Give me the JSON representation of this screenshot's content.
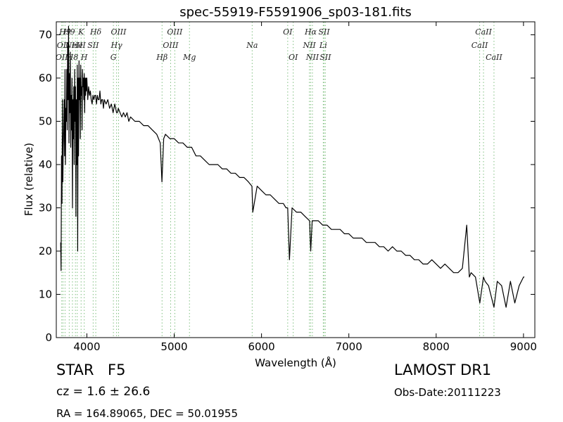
{
  "chart_data": {
    "type": "line",
    "title": "spec-55919-F5591906_sp03-181.fits",
    "xlabel": "Wavelength (Å)",
    "ylabel": "Flux (relative)",
    "xlim": [
      3650,
      9130
    ],
    "ylim": [
      0,
      73
    ],
    "xticks": [
      4000,
      5000,
      6000,
      7000,
      8000,
      9000
    ],
    "yticks": [
      0,
      10,
      20,
      30,
      40,
      50,
      60,
      70
    ],
    "grid": false,
    "line_color": "#000000",
    "line_marker_color": "#7fbf7f",
    "series": [
      {
        "x": [
          3700,
          3705,
          3710,
          3715,
          3720,
          3725,
          3730,
          3735,
          3740,
          3745,
          3750,
          3755,
          3760,
          3765,
          3770,
          3775,
          3780,
          3785,
          3790,
          3795,
          3800,
          3805,
          3810,
          3815,
          3820,
          3825,
          3830,
          3835,
          3840,
          3845,
          3850,
          3855,
          3860,
          3865,
          3870,
          3875,
          3880,
          3885,
          3890,
          3895,
          3900,
          3905,
          3910,
          3915,
          3920,
          3925,
          3930,
          3935,
          3940,
          3945,
          3950,
          3955,
          3960,
          3965,
          3970,
          3975,
          3980,
          3985,
          3990,
          3995,
          4000,
          4010,
          4020,
          4030,
          4040,
          4050,
          4060,
          4070,
          4080,
          4090,
          4100,
          4110,
          4120,
          4130,
          4140,
          4150,
          4160,
          4170,
          4180,
          4190,
          4200,
          4220,
          4240,
          4260,
          4280,
          4300,
          4310,
          4320,
          4330,
          4340,
          4350,
          4360,
          4380,
          4400,
          4420,
          4440,
          4460,
          4480,
          4500,
          4550,
          4600,
          4650,
          4700,
          4750,
          4800,
          4840,
          4860,
          4880,
          4900,
          4950,
          5000,
          5050,
          5100,
          5150,
          5200,
          5250,
          5300,
          5350,
          5400,
          5450,
          5500,
          5550,
          5600,
          5650,
          5700,
          5750,
          5800,
          5850,
          5890,
          5900,
          5950,
          6000,
          6050,
          6100,
          6150,
          6200,
          6250,
          6280,
          6300,
          6320,
          6350,
          6400,
          6450,
          6500,
          6550,
          6563,
          6580,
          6600,
          6650,
          6700,
          6750,
          6800,
          6850,
          6900,
          6950,
          7000,
          7050,
          7100,
          7150,
          7200,
          7250,
          7300,
          7350,
          7400,
          7450,
          7500,
          7550,
          7600,
          7650,
          7700,
          7750,
          7800,
          7850,
          7900,
          7950,
          8000,
          8050,
          8100,
          8150,
          8200,
          8250,
          8300,
          8350,
          8380,
          8400,
          8450,
          8500,
          8542,
          8560,
          8600,
          8662,
          8700,
          8750,
          8800,
          8850,
          8900,
          8950,
          9000,
          9010
        ],
        "y": [
          22,
          15.5,
          42,
          31,
          55,
          36,
          44,
          48,
          55,
          42,
          62,
          40,
          53,
          50,
          62,
          48,
          68,
          55,
          72,
          45,
          61,
          52,
          66,
          44,
          56,
          48,
          60,
          30,
          55,
          46,
          58,
          40,
          62,
          50,
          58,
          28,
          55,
          40,
          63,
          20,
          60,
          42,
          64,
          55,
          60,
          46,
          63,
          56,
          58,
          48,
          62,
          58,
          60,
          55,
          61,
          52,
          60,
          56,
          60,
          57,
          60,
          55,
          58,
          56,
          57,
          55,
          54,
          56,
          55,
          56,
          56,
          54,
          56,
          55,
          55,
          57,
          54,
          55,
          55,
          53,
          55,
          54,
          55,
          53,
          54,
          52,
          53,
          54,
          53,
          52,
          52,
          53,
          52,
          51,
          52,
          51,
          52,
          50,
          51,
          50,
          50,
          49,
          49,
          48,
          47,
          45,
          36,
          46,
          47,
          46,
          46,
          45,
          45,
          44,
          44,
          42,
          42,
          41,
          40,
          40,
          40,
          39,
          39,
          38,
          38,
          37,
          37,
          36,
          35,
          29,
          35,
          34,
          33,
          33,
          32,
          31,
          31,
          30,
          30,
          18,
          30,
          29,
          29,
          28,
          27,
          20,
          27,
          27,
          27,
          26,
          26,
          25,
          25,
          25,
          24,
          24,
          23,
          23,
          23,
          22,
          22,
          22,
          21,
          21,
          20,
          21,
          20,
          20,
          19,
          19,
          18,
          18,
          17,
          17,
          18,
          17,
          16,
          17,
          16,
          15,
          15,
          16,
          26,
          14,
          15,
          14,
          8,
          14,
          13,
          12,
          7,
          13,
          12,
          7,
          13,
          8,
          12,
          14,
          14
        ]
      }
    ],
    "lines": [
      {
        "x": 3712,
        "label": "OII",
        "row": 3
      },
      {
        "x": 3727,
        "label": "OII",
        "row": 2
      },
      {
        "x": 3750,
        "label": "H9",
        "row": 1
      },
      {
        "x": 3798,
        "label": "H9",
        "row": 1
      },
      {
        "x": 3835,
        "label": "H8",
        "row": 3
      },
      {
        "x": 3869,
        "label": "NeIII",
        "row": 2
      },
      {
        "x": 3890,
        "label": "He",
        "row": 2
      },
      {
        "x": 3934,
        "label": "K",
        "row": 1
      },
      {
        "x": 3970,
        "label": "H",
        "row": 3
      },
      {
        "x": 4072,
        "label": "SII",
        "row": 2
      },
      {
        "x": 4102,
        "label": "Hδ",
        "row": 1
      },
      {
        "x": 4304,
        "label": "G",
        "row": 3
      },
      {
        "x": 4340,
        "label": "Hγ",
        "row": 2
      },
      {
        "x": 4363,
        "label": "OIII",
        "row": 1
      },
      {
        "x": 4861,
        "label": "Hβ",
        "row": 3
      },
      {
        "x": 4959,
        "label": "OIII",
        "row": 2
      },
      {
        "x": 5007,
        "label": "OIII",
        "row": 1
      },
      {
        "x": 5175,
        "label": "Mg",
        "row": 3
      },
      {
        "x": 5893,
        "label": "Na",
        "row": 2
      },
      {
        "x": 6300,
        "label": "OI",
        "row": 1
      },
      {
        "x": 6363,
        "label": "OI",
        "row": 3
      },
      {
        "x": 6548,
        "label": "NII",
        "row": 2
      },
      {
        "x": 6563,
        "label": "Hα",
        "row": 1
      },
      {
        "x": 6583,
        "label": "NII",
        "row": 3
      },
      {
        "x": 6707,
        "label": "Li",
        "row": 2
      },
      {
        "x": 6716,
        "label": "SII",
        "row": 1
      },
      {
        "x": 6731,
        "label": "SII",
        "row": 3
      },
      {
        "x": 8498,
        "label": "CaII",
        "row": 2
      },
      {
        "x": 8542,
        "label": "CaII",
        "row": 1
      },
      {
        "x": 8662,
        "label": "CaII",
        "row": 3
      }
    ]
  },
  "info": {
    "object_class": "STAR",
    "subclass": "F5",
    "redshift": "cz = 1.6 ± 26.6",
    "coords": "RA = 164.89065, DEC = 50.01955",
    "survey": "LAMOST DR1",
    "obs_date": "Obs-Date:20111223"
  }
}
